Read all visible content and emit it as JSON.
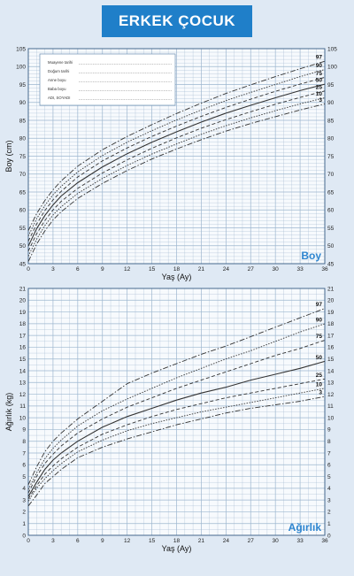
{
  "header": {
    "title": "ERKEK ÇOCUK"
  },
  "form": {
    "fields": [
      "Muayene tarihi",
      "Doğum tarihi",
      "Anne boyu",
      "Baba boyu",
      "ADI, SOYADI"
    ]
  },
  "colors": {
    "header_bg": "#1f7fc9",
    "watermark": "#2f86d0",
    "curve": "#333333",
    "grid": "#9db6cf"
  },
  "chart_data": [
    {
      "type": "line",
      "title": "",
      "watermark": "Boy",
      "xlabel": "Yaş (Ay)",
      "ylabel": "Boy (cm)",
      "xlim": [
        0,
        36
      ],
      "ylim": [
        45,
        105
      ],
      "xticks": [
        0,
        3,
        6,
        9,
        12,
        15,
        18,
        21,
        24,
        27,
        30,
        33,
        36
      ],
      "yticks": [
        45,
        50,
        55,
        60,
        65,
        70,
        75,
        80,
        85,
        90,
        95,
        100,
        105
      ],
      "grid": true,
      "x": [
        0,
        1,
        2,
        3,
        4,
        6,
        9,
        12,
        15,
        18,
        21,
        24,
        27,
        30,
        33,
        36
      ],
      "series": [
        {
          "name": "97",
          "values": [
            54.2,
            58.9,
            62.6,
            65.6,
            68.1,
            72.2,
            76.8,
            80.5,
            83.8,
            86.9,
            89.8,
            92.5,
            94.9,
            97.2,
            99.4,
            101.5
          ]
        },
        {
          "name": "90",
          "values": [
            52.7,
            57.5,
            61.2,
            64.2,
            66.6,
            70.6,
            75.2,
            78.9,
            82.1,
            85.1,
            87.9,
            90.5,
            92.8,
            95.0,
            97.2,
            99.2
          ]
        },
        {
          "name": "75",
          "values": [
            51.3,
            56.0,
            59.8,
            62.8,
            65.2,
            69.2,
            73.7,
            77.3,
            80.5,
            83.4,
            86.1,
            88.6,
            90.9,
            93.1,
            95.1,
            97.0
          ]
        },
        {
          "name": "50",
          "values": [
            49.9,
            54.7,
            58.4,
            61.4,
            63.9,
            67.6,
            72.0,
            75.7,
            78.9,
            81.8,
            84.5,
            87.0,
            89.2,
            91.3,
            93.3,
            95.1
          ]
        },
        {
          "name": "25",
          "values": [
            48.5,
            53.3,
            57.0,
            60.0,
            62.4,
            66.0,
            70.3,
            74.0,
            77.2,
            80.1,
            82.8,
            85.2,
            87.4,
            89.5,
            91.4,
            93.2
          ]
        },
        {
          "name": "10",
          "values": [
            47.1,
            51.8,
            55.6,
            58.6,
            60.9,
            64.6,
            68.8,
            72.4,
            75.6,
            78.4,
            81.1,
            83.5,
            85.7,
            87.7,
            89.6,
            91.3
          ]
        },
        {
          "name": "3",
          "values": [
            45.6,
            50.4,
            54.1,
            57.2,
            59.5,
            63.2,
            67.4,
            71.0,
            74.2,
            77.0,
            79.6,
            82.0,
            84.1,
            86.0,
            87.9,
            89.6
          ]
        }
      ]
    },
    {
      "type": "line",
      "title": "",
      "watermark": "Ağırlık",
      "xlabel": "Yaş (Ay)",
      "ylabel": "Ağırlık (kg)",
      "xlim": [
        0,
        36
      ],
      "ylim": [
        0,
        21
      ],
      "xticks": [
        0,
        3,
        6,
        9,
        12,
        15,
        18,
        21,
        24,
        27,
        30,
        33,
        36
      ],
      "yticks": [
        0,
        1,
        2,
        3,
        4,
        5,
        6,
        7,
        8,
        9,
        10,
        11,
        12,
        13,
        14,
        15,
        16,
        17,
        18,
        19,
        20,
        21
      ],
      "grid": true,
      "x": [
        0,
        1,
        2,
        3,
        4,
        6,
        9,
        12,
        15,
        18,
        21,
        24,
        27,
        30,
        33,
        36
      ],
      "series": [
        {
          "name": "97",
          "values": [
            4.3,
            5.8,
            7.1,
            8.0,
            8.7,
            9.9,
            11.4,
            12.9,
            13.8,
            14.6,
            15.4,
            16.1,
            16.9,
            17.7,
            18.5,
            19.3
          ]
        },
        {
          "name": "90",
          "values": [
            3.9,
            5.3,
            6.5,
            7.4,
            8.1,
            9.3,
            10.6,
            11.6,
            12.5,
            13.4,
            14.2,
            15.0,
            15.7,
            16.5,
            17.3,
            18.0
          ]
        },
        {
          "name": "75",
          "values": [
            3.6,
            5.0,
            6.1,
            6.9,
            7.6,
            8.7,
            9.9,
            10.9,
            11.7,
            12.5,
            13.2,
            13.9,
            14.6,
            15.3,
            15.9,
            16.6
          ]
        },
        {
          "name": "50",
          "values": [
            3.3,
            4.5,
            5.6,
            6.4,
            7.0,
            8.0,
            9.2,
            10.1,
            10.8,
            11.5,
            12.1,
            12.6,
            13.2,
            13.7,
            14.2,
            14.8
          ]
        },
        {
          "name": "25",
          "values": [
            3.1,
            4.2,
            5.2,
            5.9,
            6.5,
            7.5,
            8.6,
            9.4,
            10.1,
            10.7,
            11.2,
            11.7,
            12.1,
            12.5,
            12.9,
            13.3
          ]
        },
        {
          "name": "10",
          "values": [
            2.9,
            4.0,
            4.8,
            5.5,
            6.1,
            7.1,
            8.1,
            8.9,
            9.5,
            10.0,
            10.5,
            10.9,
            11.3,
            11.7,
            12.1,
            12.5
          ]
        },
        {
          "name": "3",
          "values": [
            2.5,
            3.4,
            4.4,
            5.0,
            5.6,
            6.6,
            7.5,
            8.2,
            8.8,
            9.4,
            9.9,
            10.4,
            10.8,
            11.1,
            11.4,
            11.8
          ]
        }
      ]
    }
  ]
}
